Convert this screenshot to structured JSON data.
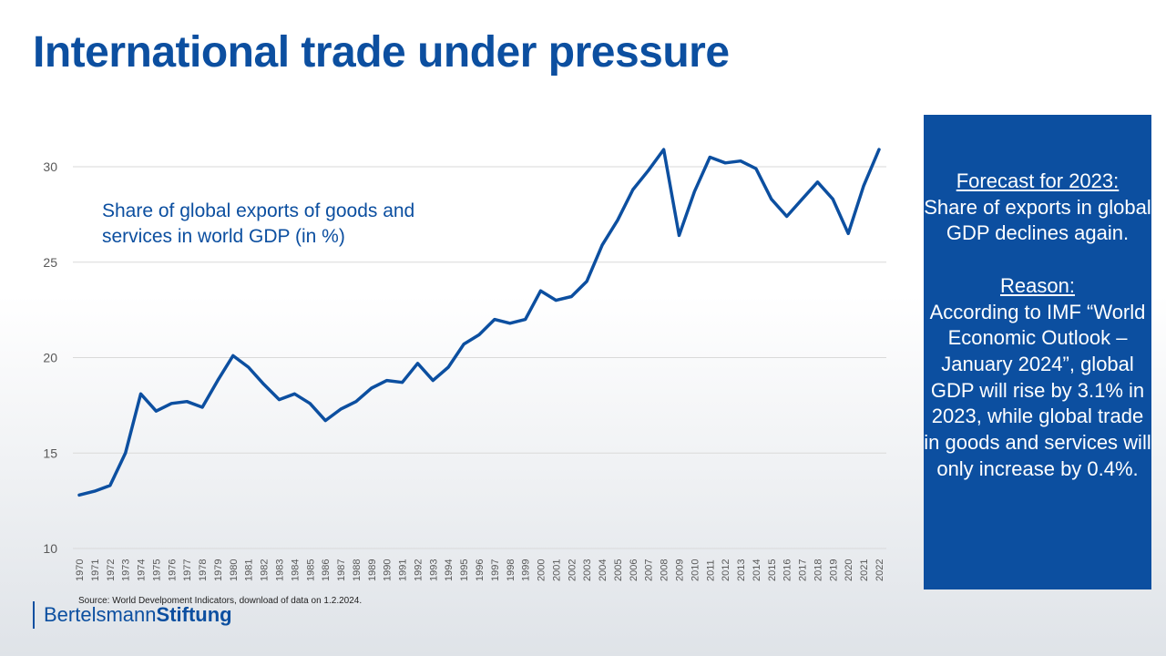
{
  "title": "International trade under pressure",
  "series_label": "Share of global exports of goods and services in world GDP (in %)",
  "box": {
    "forecast_heading": "Forecast for 2023:",
    "forecast_text": "Share of exports in global GDP declines again.",
    "reason_heading": "Reason:",
    "reason_text": "According to IMF “World Economic Outlook – January 2024”, global GDP will rise by 3.1% in 2023, while global trade in goods and services will only increase by 0.4%."
  },
  "source": "Source: World Develpoment Indicators, download of data on 1.2.2024.",
  "logo": {
    "part1": "Bertelsmann",
    "part2": "Stiftung"
  },
  "colors": {
    "accent": "#0c4fa0",
    "line": "#0c4fa0",
    "grid": "#d9d9d9"
  },
  "chart_data": {
    "type": "line",
    "grid": true,
    "ylim": [
      10,
      32
    ],
    "yticks": [
      10,
      15,
      20,
      25,
      30
    ],
    "categories": [
      "1970",
      "1971",
      "1972",
      "1973",
      "1974",
      "1975",
      "1976",
      "1977",
      "1978",
      "1979",
      "1980",
      "1981",
      "1982",
      "1983",
      "1984",
      "1985",
      "1986",
      "1987",
      "1988",
      "1989",
      "1990",
      "1991",
      "1992",
      "1993",
      "1994",
      "1995",
      "1996",
      "1997",
      "1998",
      "1999",
      "2000",
      "2001",
      "2002",
      "2003",
      "2004",
      "2005",
      "2006",
      "2007",
      "2008",
      "2009",
      "2010",
      "2011",
      "2012",
      "2013",
      "2014",
      "2015",
      "2016",
      "2017",
      "2018",
      "2019",
      "2020",
      "2021",
      "2022"
    ],
    "series": [
      {
        "values": [
          12.8,
          13.0,
          13.3,
          15.0,
          18.1,
          17.2,
          17.6,
          17.7,
          17.4,
          18.8,
          20.1,
          19.5,
          18.6,
          17.8,
          18.1,
          17.6,
          16.7,
          17.3,
          17.7,
          18.4,
          18.8,
          18.7,
          19.7,
          18.8,
          19.5,
          20.7,
          21.2,
          22.0,
          21.8,
          22.0,
          23.5,
          23.0,
          23.2,
          24.0,
          25.9,
          27.2,
          28.8,
          29.8,
          30.9,
          26.4,
          28.7,
          30.5,
          30.2,
          30.3,
          29.9,
          28.3,
          27.4,
          28.3,
          29.2,
          28.3,
          26.5,
          29.0,
          30.9
        ]
      }
    ]
  }
}
